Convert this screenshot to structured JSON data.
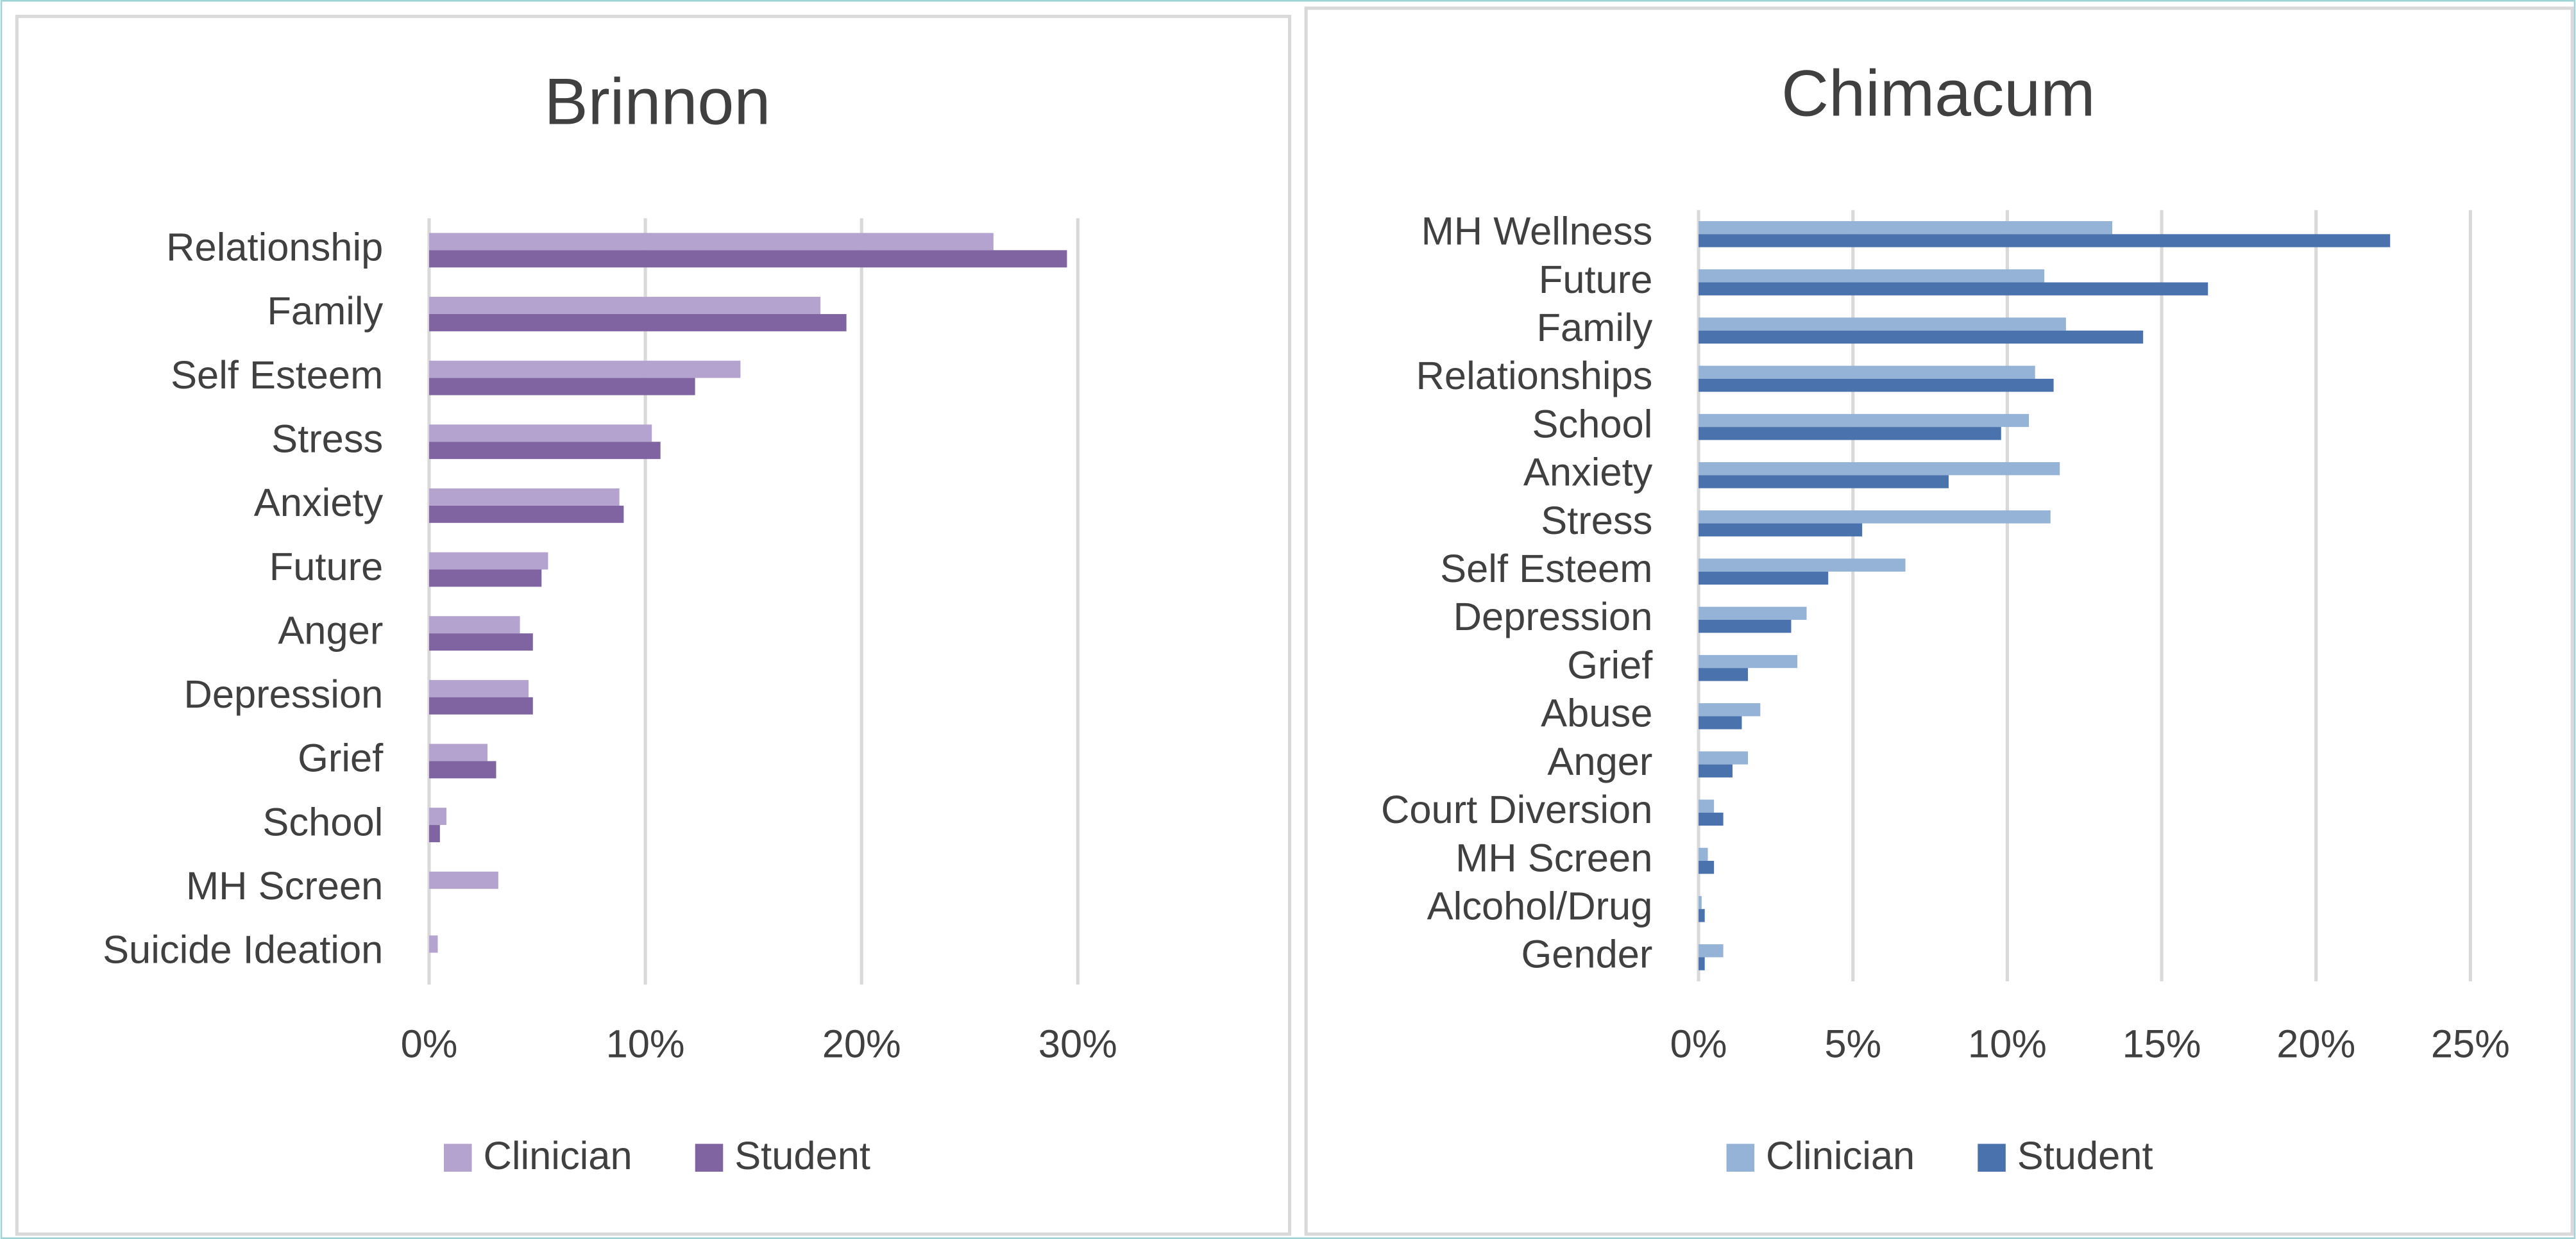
{
  "chart_data": [
    {
      "type": "bar",
      "orientation": "horizontal",
      "title": "Brinnon",
      "categories": [
        "Relationship",
        "Family",
        "Self Esteem",
        "Stress",
        "Anxiety",
        "Future",
        "Anger",
        "Depression",
        "Grief",
        "School",
        "MH Screen",
        "Suicide Ideation"
      ],
      "series": [
        {
          "name": "Clinician",
          "color": "#b4a2cf",
          "values": [
            26.1,
            18.1,
            14.4,
            10.3,
            8.8,
            5.5,
            4.2,
            4.6,
            2.7,
            0.8,
            3.2,
            0.4
          ]
        },
        {
          "name": "Student",
          "color": "#8064a2",
          "values": [
            29.5,
            19.3,
            12.3,
            10.7,
            9.0,
            5.2,
            4.8,
            4.8,
            3.1,
            0.5,
            0,
            0
          ]
        }
      ],
      "xlim": [
        0,
        30
      ],
      "xticks": [
        {
          "value": 0,
          "label": "0%"
        },
        {
          "value": 10,
          "label": "10%"
        },
        {
          "value": 20,
          "label": "20%"
        },
        {
          "value": 30,
          "label": "30%"
        }
      ],
      "grid": true,
      "legend": "bottom"
    },
    {
      "type": "bar",
      "orientation": "horizontal",
      "title": "Chimacum",
      "categories": [
        "MH Wellness",
        "Future",
        "Family",
        "Relationships",
        "School",
        "Anxiety",
        "Stress",
        "Self Esteem",
        "Depression",
        "Grief",
        "Abuse",
        "Anger",
        "Court Diversion",
        "MH Screen",
        "Alcohol/Drug",
        "Gender"
      ],
      "series": [
        {
          "name": "Clinician",
          "color": "#95b3d7",
          "values": [
            13.4,
            11.2,
            11.9,
            10.9,
            10.7,
            11.7,
            11.4,
            6.7,
            3.5,
            3.2,
            2.0,
            1.6,
            0.5,
            0.3,
            0.1,
            0.8
          ]
        },
        {
          "name": "Student",
          "color": "#4a72ad",
          "values": [
            22.4,
            16.5,
            14.4,
            11.5,
            9.8,
            8.1,
            5.3,
            4.2,
            3.0,
            1.6,
            1.4,
            1.1,
            0.8,
            0.5,
            0.2,
            0.2
          ]
        }
      ],
      "xlim": [
        0,
        25
      ],
      "xticks": [
        {
          "value": 0,
          "label": "0%"
        },
        {
          "value": 5,
          "label": "5%"
        },
        {
          "value": 10,
          "label": "10%"
        },
        {
          "value": 15,
          "label": "15%"
        },
        {
          "value": 20,
          "label": "20%"
        },
        {
          "value": 25,
          "label": "25%"
        }
      ],
      "grid": true,
      "legend": "bottom"
    }
  ]
}
